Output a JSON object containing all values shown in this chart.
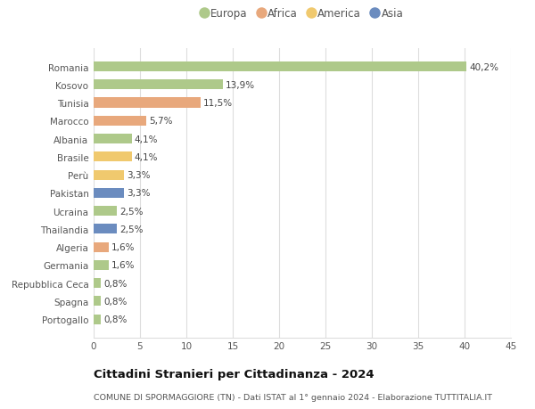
{
  "countries": [
    "Romania",
    "Kosovo",
    "Tunisia",
    "Marocco",
    "Albania",
    "Brasile",
    "Perù",
    "Pakistan",
    "Ucraina",
    "Thailandia",
    "Algeria",
    "Germania",
    "Repubblica Ceca",
    "Spagna",
    "Portogallo"
  ],
  "values": [
    40.2,
    13.9,
    11.5,
    5.7,
    4.1,
    4.1,
    3.3,
    3.3,
    2.5,
    2.5,
    1.6,
    1.6,
    0.8,
    0.8,
    0.8
  ],
  "labels": [
    "40,2%",
    "13,9%",
    "11,5%",
    "5,7%",
    "4,1%",
    "4,1%",
    "3,3%",
    "3,3%",
    "2,5%",
    "2,5%",
    "1,6%",
    "1,6%",
    "0,8%",
    "0,8%",
    "0,8%"
  ],
  "continents": [
    "Europa",
    "Europa",
    "Africa",
    "Africa",
    "Europa",
    "America",
    "America",
    "Asia",
    "Europa",
    "Asia",
    "Africa",
    "Europa",
    "Europa",
    "Europa",
    "Europa"
  ],
  "continent_colors": {
    "Europa": "#aec98a",
    "Africa": "#e8a87c",
    "America": "#f0c96e",
    "Asia": "#6b8cbf"
  },
  "legend_order": [
    "Europa",
    "Africa",
    "America",
    "Asia"
  ],
  "xlim": [
    0,
    45
  ],
  "xticks": [
    0,
    5,
    10,
    15,
    20,
    25,
    30,
    35,
    40,
    45
  ],
  "title": "Cittadini Stranieri per Cittadinanza - 2024",
  "subtitle": "COMUNE DI SPORMAGGIORE (TN) - Dati ISTAT al 1° gennaio 2024 - Elaborazione TUTTITALIA.IT",
  "background_color": "#ffffff",
  "grid_color": "#dddddd",
  "bar_height": 0.55,
  "label_fontsize": 7.5,
  "tick_fontsize": 7.5,
  "title_fontsize": 9.5,
  "subtitle_fontsize": 6.8,
  "legend_fontsize": 8.5
}
